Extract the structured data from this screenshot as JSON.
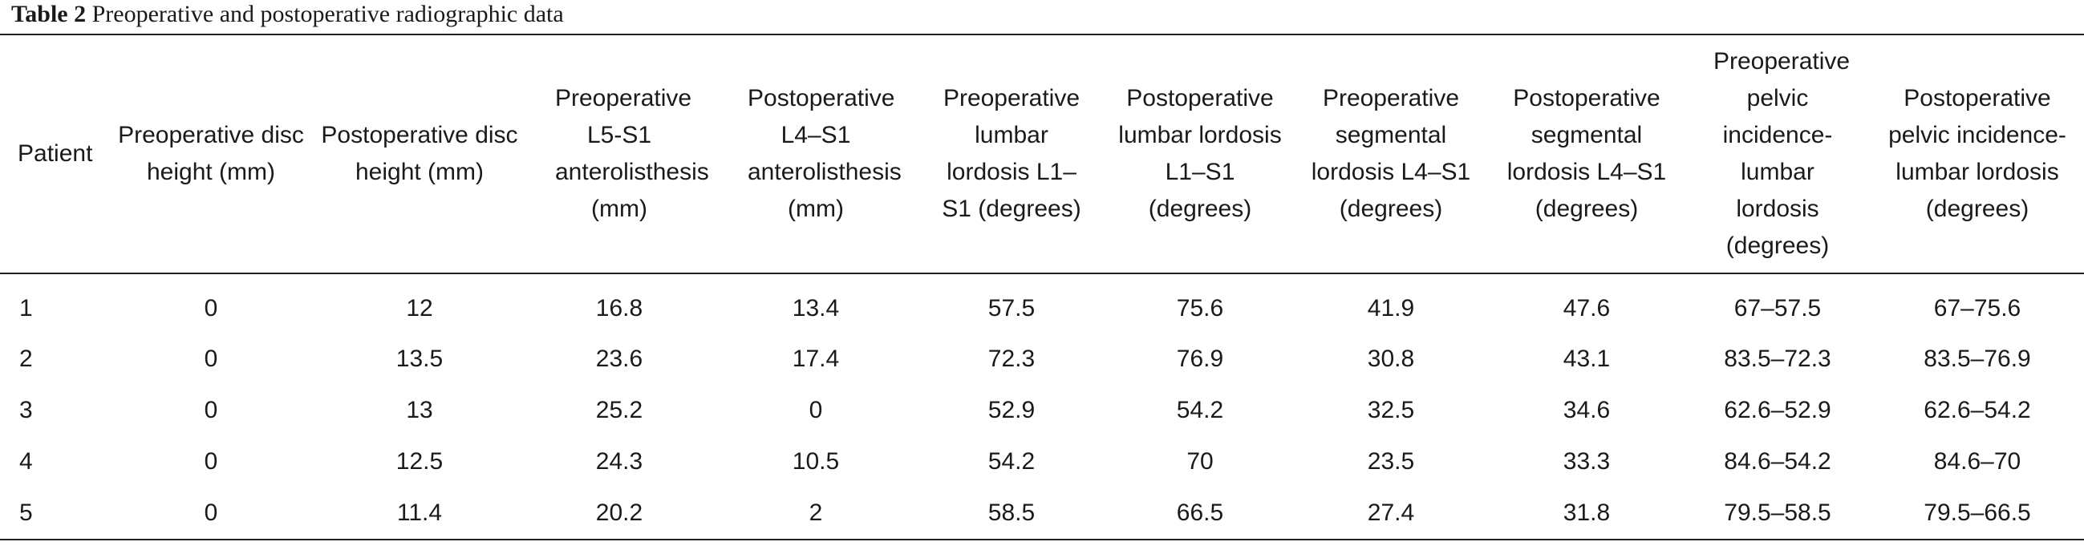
{
  "caption": {
    "label": "Table 2",
    "text": "Preoperative and postoperative radiographic data"
  },
  "table": {
    "headers": [
      "Patient",
      "Preoperative disc height (mm)",
      "Postoperative disc height (mm)",
      "Preoperative L5-S1 anterolisthesis (mm)",
      "Postoperative L4–S1 anterolisthesis (mm)",
      "Preoperative lumbar lordosis L1–S1 (degrees)",
      "Postoperative lumbar lordosis L1–S1 (degrees)",
      "Preoperative segmental lordosis L4–S1 (degrees)",
      "Postoperative segmental lordosis L4–S1 (degrees)",
      "Preoperative pelvic incidence-lumbar lordosis (degrees)",
      "Postoperative pelvic incidence-lumbar lordosis (degrees)"
    ],
    "rows": [
      [
        "1",
        "0",
        "12",
        "16.8",
        "13.4",
        "57.5",
        "75.6",
        "41.9",
        "47.6",
        "67–57.5",
        "67–75.6"
      ],
      [
        "2",
        "0",
        "13.5",
        "23.6",
        "17.4",
        "72.3",
        "76.9",
        "30.8",
        "43.1",
        "83.5–72.3",
        "83.5–76.9"
      ],
      [
        "3",
        "0",
        "13",
        "25.2",
        "0",
        "52.9",
        "54.2",
        "32.5",
        "34.6",
        "62.6–52.9",
        "62.6–54.2"
      ],
      [
        "4",
        "0",
        "12.5",
        "24.3",
        "10.5",
        "54.2",
        "70",
        "23.5",
        "33.3",
        "84.6–54.2",
        "84.6–70"
      ],
      [
        "5",
        "0",
        "11.4",
        "20.2",
        "2",
        "58.5",
        "66.5",
        "27.4",
        "31.8",
        "79.5–58.5",
        "79.5–66.5"
      ]
    ]
  }
}
